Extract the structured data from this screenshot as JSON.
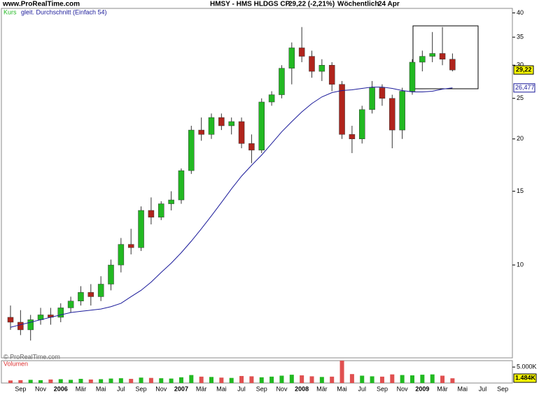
{
  "header": {
    "site": "www.ProRealTime.com",
    "title": "HMSY - HMS HLDGS CP",
    "quote": "29,22 (-2,21%)",
    "period": "Wöchentlich",
    "date": "24 Apr"
  },
  "footer": "© ProRealTime.com",
  "chart_data": {
    "type": "candlestick",
    "log": true,
    "categories": [
      null,
      "Sep",
      null,
      "Nov",
      null,
      "2006",
      null,
      "Mär",
      null,
      "Mai",
      null,
      "Jul",
      null,
      "Sep",
      null,
      "Nov",
      null,
      "2007",
      null,
      "Mär",
      null,
      "Mai",
      null,
      "Jul",
      null,
      "Sep",
      null,
      "Nov",
      null,
      "2008",
      null,
      "Mär",
      null,
      "Mai",
      null,
      "Jul",
      null,
      "Sep",
      null,
      "Nov",
      null,
      "2009",
      null,
      "Mär",
      null,
      "Mai",
      null,
      "Jul",
      null,
      "Sep"
    ],
    "ylim": [
      6,
      41
    ],
    "yticks": [
      10,
      15,
      20,
      25,
      30,
      35,
      40
    ],
    "series": [
      {
        "name": "Kurs",
        "up_color": "#22b922",
        "down_color": "#b0241c",
        "last_label": "29,22",
        "open": [
          7.5,
          7.3,
          7.0,
          7.4,
          7.6,
          7.5,
          7.9,
          8.2,
          8.6,
          8.4,
          9.0,
          10.0,
          11.2,
          11.0,
          13.5,
          13.0,
          14.0,
          14.3,
          16.8,
          21.0,
          20.5,
          22.5,
          21.5,
          22.0,
          19.5,
          18.8,
          24.5,
          25.5,
          29.5,
          33.0,
          31.5,
          29.0,
          30.0,
          27.0,
          20.5,
          20.0,
          23.5,
          26.5,
          25.0,
          21.0,
          26.0,
          30.5,
          31.5,
          32.0,
          31.0,
          null,
          null,
          null,
          null,
          null
        ],
        "high": [
          8.0,
          7.8,
          7.6,
          7.9,
          7.9,
          8.1,
          8.4,
          8.9,
          9.0,
          9.4,
          10.3,
          11.6,
          12.2,
          13.8,
          14.5,
          14.2,
          15.0,
          17.0,
          21.5,
          22.5,
          23.0,
          23.0,
          22.5,
          22.5,
          20.5,
          25.0,
          26.0,
          30.0,
          34.0,
          37.0,
          32.5,
          31.0,
          30.5,
          27.5,
          21.5,
          24.0,
          27.5,
          27.0,
          25.5,
          26.5,
          31.0,
          32.5,
          36.0,
          37.0,
          32.0,
          null,
          null,
          null,
          null,
          null
        ],
        "low": [
          7.0,
          6.8,
          6.6,
          7.2,
          7.2,
          7.3,
          7.7,
          8.0,
          8.0,
          8.2,
          8.7,
          9.6,
          10.6,
          10.8,
          12.5,
          12.8,
          13.5,
          14.0,
          16.5,
          19.8,
          20.0,
          21.0,
          20.5,
          19.0,
          17.5,
          18.5,
          24.0,
          25.0,
          27.0,
          30.5,
          28.0,
          27.5,
          26.0,
          20.0,
          18.5,
          19.5,
          23.0,
          24.0,
          19.0,
          20.0,
          25.5,
          29.0,
          30.5,
          30.0,
          29.0,
          null,
          null,
          null,
          null,
          null
        ],
        "close": [
          7.3,
          7.0,
          7.4,
          7.6,
          7.5,
          7.9,
          8.2,
          8.6,
          8.4,
          9.0,
          10.0,
          11.2,
          11.0,
          13.5,
          13.0,
          14.0,
          14.3,
          16.8,
          21.0,
          20.5,
          22.5,
          21.5,
          22.0,
          19.5,
          18.8,
          24.5,
          25.5,
          29.5,
          33.0,
          31.5,
          29.0,
          30.0,
          27.0,
          20.5,
          20.0,
          23.5,
          26.5,
          25.0,
          21.0,
          26.0,
          30.5,
          31.5,
          32.0,
          31.0,
          29.22,
          null,
          null,
          null,
          null,
          null
        ]
      },
      {
        "name": "gleit. Durchschnitt (Einfach 54)",
        "color": "#1a1a9a",
        "last_label": "26,477",
        "values": [
          7.1,
          7.2,
          7.3,
          7.4,
          7.5,
          7.6,
          7.7,
          7.75,
          7.8,
          7.85,
          7.95,
          8.1,
          8.4,
          8.7,
          9.1,
          9.6,
          10.1,
          10.7,
          11.4,
          12.2,
          13.1,
          14.1,
          15.2,
          16.3,
          17.3,
          18.3,
          19.5,
          20.8,
          22.0,
          23.2,
          24.3,
          25.2,
          25.8,
          26.1,
          26.2,
          26.4,
          26.6,
          26.6,
          26.4,
          26.1,
          25.9,
          25.9,
          26.0,
          26.3,
          26.477,
          null,
          null,
          null,
          null,
          null
        ]
      }
    ],
    "volume": {
      "name": "Volumen",
      "ylim": [
        0,
        7000
      ],
      "yticks": [
        {
          "value": 5000,
          "label": "5.000K"
        }
      ],
      "last_label": "1.484K",
      "values": [
        800,
        900,
        1000,
        900,
        1100,
        1200,
        1000,
        1300,
        1100,
        1200,
        1400,
        1500,
        1300,
        1700,
        1600,
        1500,
        1400,
        1800,
        2500,
        2000,
        1900,
        1700,
        1600,
        2200,
        2100,
        1800,
        2000,
        2300,
        2600,
        2400,
        2100,
        1900,
        2000,
        7000,
        2800,
        2300,
        2100,
        2000,
        2700,
        2500,
        2400,
        2600,
        2700,
        2300,
        1484,
        null,
        null,
        null,
        null,
        null
      ]
    }
  }
}
